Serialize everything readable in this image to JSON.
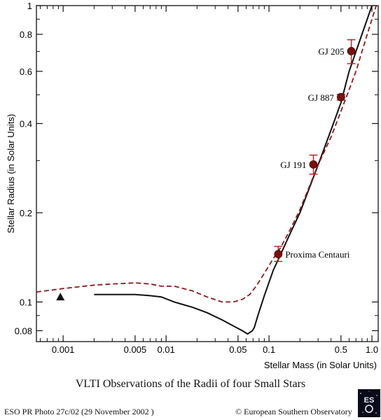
{
  "chart_data": {
    "type": "line",
    "title": "VLTI Observations of the Radii of four Small Stars",
    "xlabel": "Stellar Mass (in Solar Units)",
    "ylabel": "Stellar Radius (in Solar Units)",
    "xscale": "log",
    "yscale": "log",
    "xlim": [
      0.00055,
      1.15
    ],
    "ylim": [
      0.0735,
      1.0
    ],
    "xticks": [
      0.001,
      0.005,
      0.01,
      0.05,
      0.1,
      0.5,
      1.0
    ],
    "xtick_labels": [
      "0.001",
      "0.005",
      "0.01",
      "0.05",
      "0.1",
      "0.5",
      "1.0"
    ],
    "yticks": [
      0.08,
      0.1,
      0.2,
      0.4,
      0.6,
      0.8,
      1.0
    ],
    "ytick_labels": [
      "0.08",
      "0.1",
      "0.2",
      "0.4",
      "0.6",
      "0.8",
      "1"
    ],
    "series": [
      {
        "style": "solid",
        "color": "#111111",
        "x": [
          0.002,
          0.005,
          0.007,
          0.009,
          0.012,
          0.018,
          0.025,
          0.035,
          0.045,
          0.055,
          0.062,
          0.069,
          0.072,
          0.078,
          0.09,
          0.11,
          0.13,
          0.16,
          0.2,
          0.3,
          0.4,
          0.5,
          0.6,
          0.7,
          0.8,
          1.0
        ],
        "y": [
          0.106,
          0.106,
          0.105,
          0.104,
          0.1,
          0.096,
          0.092,
          0.087,
          0.083,
          0.08,
          0.078,
          0.08,
          0.082,
          0.09,
          0.105,
          0.128,
          0.145,
          0.17,
          0.2,
          0.29,
          0.38,
          0.47,
          0.6,
          0.7,
          0.8,
          1.0
        ]
      },
      {
        "style": "dashed",
        "color": "#8b1a1a",
        "x": [
          0.00055,
          0.001,
          0.002,
          0.003,
          0.005,
          0.007,
          0.009,
          0.012,
          0.018,
          0.025,
          0.035,
          0.045,
          0.055,
          0.065,
          0.075,
          0.09,
          0.11,
          0.13,
          0.16,
          0.2,
          0.3,
          0.4,
          0.5,
          0.6,
          0.7,
          0.8,
          1.0,
          1.15
        ],
        "y": [
          0.108,
          0.111,
          0.114,
          0.115,
          0.116,
          0.115,
          0.113,
          0.113,
          0.109,
          0.104,
          0.1,
          0.1,
          0.102,
          0.106,
          0.113,
          0.125,
          0.14,
          0.153,
          0.175,
          0.205,
          0.29,
          0.36,
          0.44,
          0.52,
          0.6,
          0.7,
          0.9,
          1.05
        ]
      }
    ],
    "stars": [
      {
        "label": "Proxima Centauri",
        "x": 0.123,
        "y": 0.145,
        "err": [
          0.137,
          0.154
        ],
        "label_side": "right"
      },
      {
        "label": "GJ 191",
        "x": 0.27,
        "y": 0.291,
        "err": [
          0.27,
          0.313
        ],
        "label_side": "left"
      },
      {
        "label": "GJ 887",
        "x": 0.5,
        "y": 0.491,
        "err": [
          0.48,
          0.502
        ],
        "label_side": "left"
      },
      {
        "label": "GJ 205",
        "x": 0.63,
        "y": 0.702,
        "err": [
          0.637,
          0.767
        ],
        "label_side": "left"
      }
    ],
    "reference_point": {
      "x": 0.00094,
      "y": 0.104,
      "marker": "triangle"
    }
  },
  "caption": "VLTI Observations of the Radii of four Small Stars",
  "footer_left": "ESO PR Photo 27c/02 (29 November 2002 )",
  "footer_right": "© European Southern Observatory",
  "logo_text": "ESO",
  "colors": {
    "model_dashed": "#8b1a1a",
    "star_marker": "#7a1010"
  }
}
